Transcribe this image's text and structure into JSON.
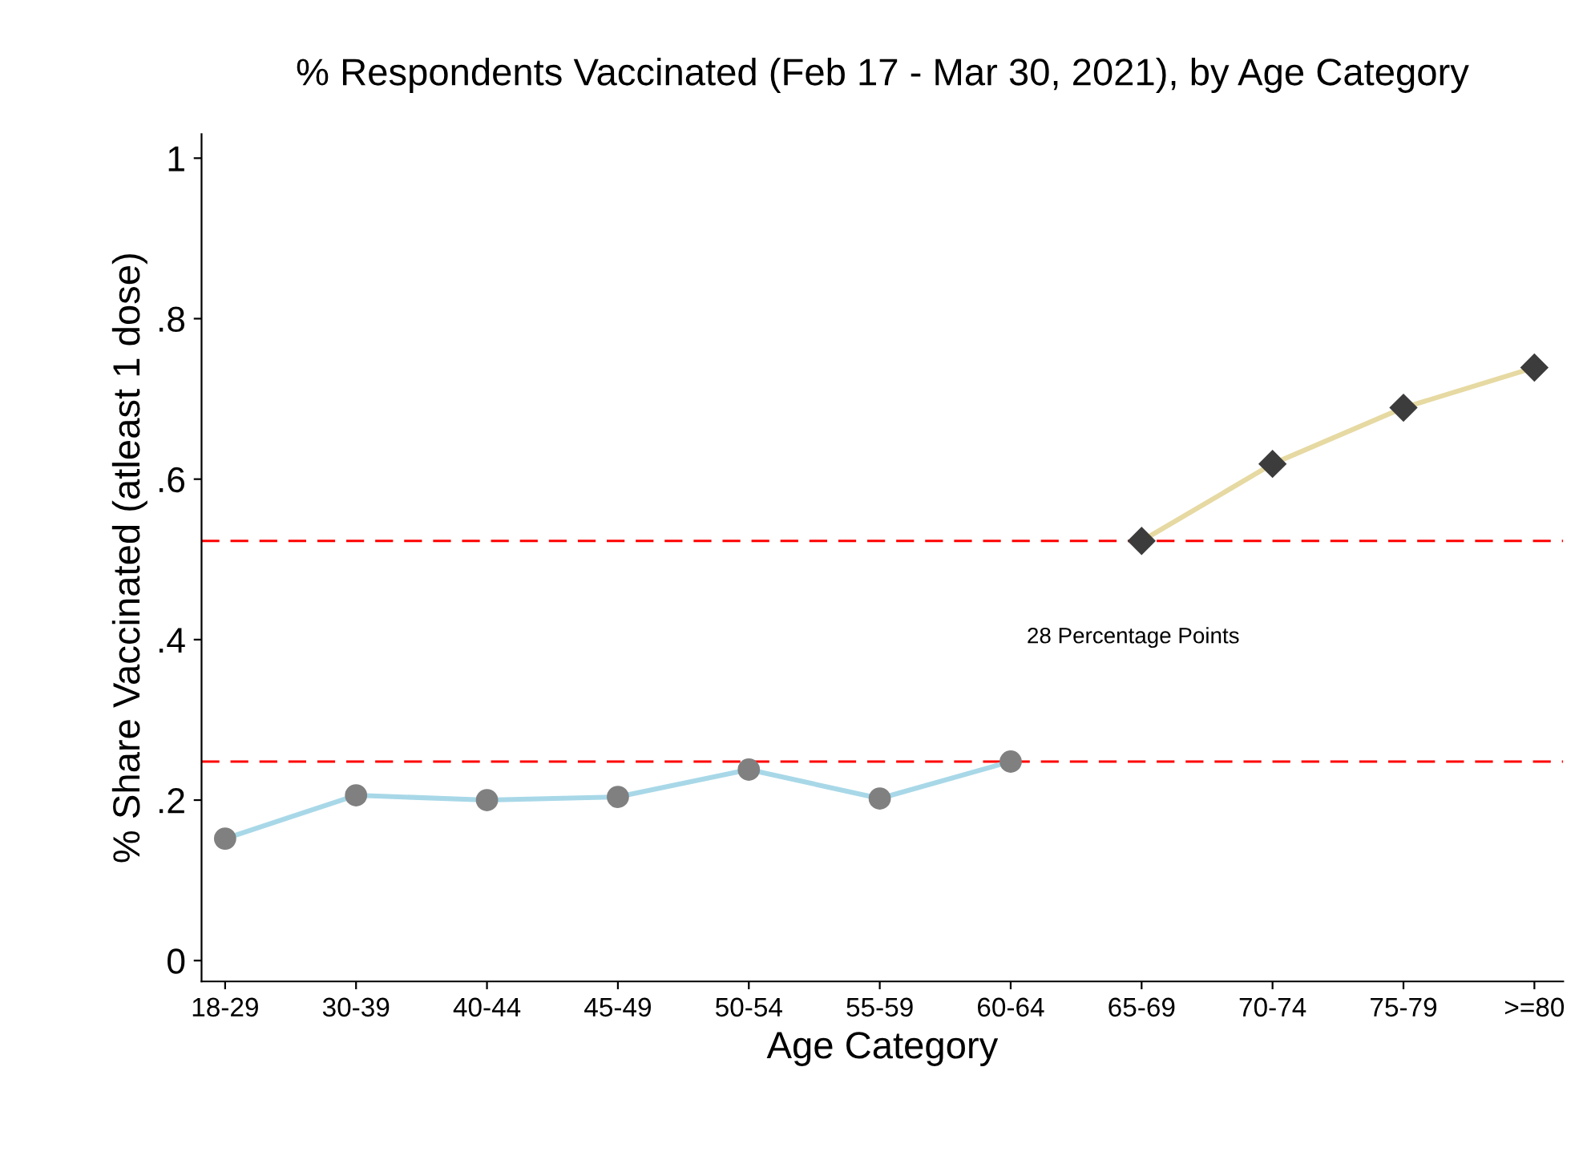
{
  "chart_data": {
    "type": "line",
    "title": "% Respondents Vaccinated (Feb 17 - Mar 30, 2021), by Age Category",
    "xlabel": "Age Category",
    "ylabel": "% Share Vaccinated (atleast 1 dose)",
    "categories": [
      "18-29",
      "30-39",
      "40-44",
      "45-49",
      "50-54",
      "55-59",
      "60-64",
      "65-69",
      "70-74",
      "75-79",
      ">=80"
    ],
    "series": [
      {
        "color": "#a8d8e8",
        "colors": [
          "#808080",
          "#808080",
          "#808080",
          "#808080",
          "#808080",
          "#808080",
          "#808080",
          null,
          null,
          null,
          null
        ],
        "marker": "circle",
        "values": [
          0.152,
          0.206,
          0.2,
          0.204,
          0.238,
          0.202,
          0.248,
          null,
          null,
          null,
          null
        ]
      },
      {
        "color": "#e6d9a2",
        "colors": [
          null,
          null,
          null,
          null,
          null,
          null,
          null,
          "#3c3c3c",
          "#3c3c3c",
          "#3c3c3c",
          "#3c3c3c"
        ],
        "marker": "diamond",
        "values": [
          null,
          null,
          null,
          null,
          null,
          null,
          null,
          0.523,
          0.619,
          0.689,
          0.739
        ]
      }
    ],
    "ylim": [
      -0.026,
      1.03
    ],
    "yticks": [
      0,
      {
        "value": 0.2,
        "label": ".2"
      },
      {
        "value": 0.4,
        "label": ".4"
      },
      {
        "value": 0.6,
        "label": ".6"
      },
      {
        "value": 0.8,
        "label": ".8"
      },
      1
    ],
    "ref_lines": [
      {
        "axis": "y",
        "value": 0.523,
        "color": "#ff0000",
        "line_style": "dashed"
      },
      {
        "axis": "y",
        "value": 0.248,
        "color": "#ff0000",
        "line_style": "dashed"
      }
    ],
    "annotations": [
      "28 Percentage Points"
    ],
    "grid": false,
    "legend": false
  }
}
